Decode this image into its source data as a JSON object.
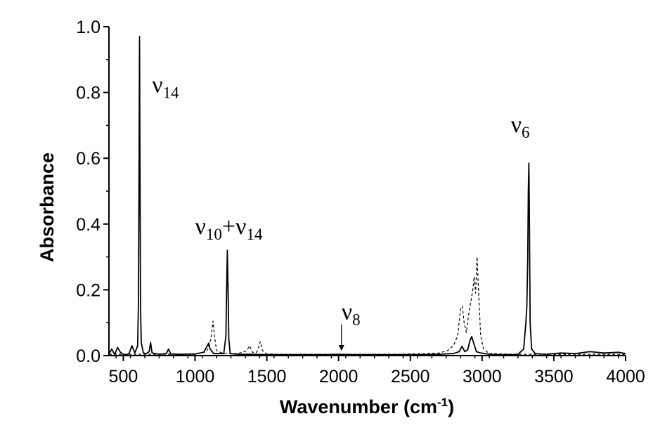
{
  "chart_data": {
    "type": "line",
    "xlabel": "Wavenumber (cm",
    "xlabel_sup": "-1",
    "xlabel_close": ")",
    "ylabel": "Absorbance",
    "xlim": [
      400,
      4000
    ],
    "ylim": [
      0,
      1.0
    ],
    "x_ticks": [
      500,
      1000,
      1500,
      2000,
      2500,
      3000,
      3500,
      4000
    ],
    "x_tick_labels": [
      "500",
      "1000",
      "1500",
      "2000",
      "2500",
      "3000",
      "3500",
      "4000"
    ],
    "y_ticks": [
      0.0,
      0.2,
      0.4,
      0.6,
      0.8,
      1.0
    ],
    "y_tick_labels": [
      "0.0",
      "0.2",
      "0.4",
      "0.6",
      "0.8",
      "1.0"
    ],
    "grid": false,
    "series": [
      {
        "style": "solid",
        "color": "#000000",
        "points": [
          [
            400,
            0.005
          ],
          [
            420,
            0.02
          ],
          [
            440,
            0.003
          ],
          [
            460,
            0.025
          ],
          [
            480,
            0.01
          ],
          [
            500,
            0.004
          ],
          [
            520,
            0.003
          ],
          [
            540,
            0.006
          ],
          [
            560,
            0.03
          ],
          [
            580,
            0.008
          ],
          [
            600,
            0.03
          ],
          [
            605,
            0.15
          ],
          [
            610,
            0.6
          ],
          [
            613,
            0.97
          ],
          [
            616,
            0.6
          ],
          [
            620,
            0.15
          ],
          [
            625,
            0.04
          ],
          [
            640,
            0.008
          ],
          [
            660,
            0.006
          ],
          [
            680,
            0.012
          ],
          [
            690,
            0.04
          ],
          [
            700,
            0.008
          ],
          [
            750,
            0.004
          ],
          [
            800,
            0.006
          ],
          [
            815,
            0.02
          ],
          [
            830,
            0.005
          ],
          [
            900,
            0.004
          ],
          [
            1000,
            0.005
          ],
          [
            1060,
            0.01
          ],
          [
            1085,
            0.03
          ],
          [
            1095,
            0.038
          ],
          [
            1105,
            0.02
          ],
          [
            1130,
            0.006
          ],
          [
            1200,
            0.006
          ],
          [
            1215,
            0.06
          ],
          [
            1220,
            0.2
          ],
          [
            1225,
            0.32
          ],
          [
            1230,
            0.2
          ],
          [
            1235,
            0.05
          ],
          [
            1245,
            0.006
          ],
          [
            1300,
            0.004
          ],
          [
            1400,
            0.004
          ],
          [
            1500,
            0.003
          ],
          [
            1600,
            0.003
          ],
          [
            1700,
            0.003
          ],
          [
            1800,
            0.003
          ],
          [
            1900,
            0.003
          ],
          [
            2000,
            0.004
          ],
          [
            2100,
            0.003
          ],
          [
            2200,
            0.003
          ],
          [
            2300,
            0.003
          ],
          [
            2400,
            0.003
          ],
          [
            2500,
            0.003
          ],
          [
            2600,
            0.003
          ],
          [
            2700,
            0.004
          ],
          [
            2800,
            0.006
          ],
          [
            2840,
            0.012
          ],
          [
            2860,
            0.028
          ],
          [
            2880,
            0.012
          ],
          [
            2900,
            0.018
          ],
          [
            2915,
            0.045
          ],
          [
            2928,
            0.058
          ],
          [
            2940,
            0.04
          ],
          [
            2960,
            0.012
          ],
          [
            2990,
            0.008
          ],
          [
            3050,
            0.004
          ],
          [
            3100,
            0.003
          ],
          [
            3200,
            0.003
          ],
          [
            3250,
            0.004
          ],
          [
            3290,
            0.02
          ],
          [
            3305,
            0.1
          ],
          [
            3312,
            0.15
          ],
          [
            3318,
            0.3
          ],
          [
            3322,
            0.5
          ],
          [
            3326,
            0.585
          ],
          [
            3330,
            0.4
          ],
          [
            3335,
            0.1
          ],
          [
            3345,
            0.02
          ],
          [
            3370,
            0.006
          ],
          [
            3450,
            0.004
          ],
          [
            3550,
            0.008
          ],
          [
            3650,
            0.006
          ],
          [
            3750,
            0.012
          ],
          [
            3850,
            0.008
          ],
          [
            3950,
            0.01
          ],
          [
            4000,
            0.006
          ]
        ]
      },
      {
        "style": "dashed",
        "color": "#000000",
        "points": [
          [
            400,
            0.004
          ],
          [
            600,
            0.004
          ],
          [
            900,
            0.004
          ],
          [
            1000,
            0.004
          ],
          [
            1080,
            0.012
          ],
          [
            1110,
            0.05
          ],
          [
            1125,
            0.105
          ],
          [
            1135,
            0.06
          ],
          [
            1150,
            0.015
          ],
          [
            1200,
            0.006
          ],
          [
            1300,
            0.006
          ],
          [
            1360,
            0.015
          ],
          [
            1380,
            0.03
          ],
          [
            1400,
            0.01
          ],
          [
            1430,
            0.01
          ],
          [
            1455,
            0.042
          ],
          [
            1470,
            0.015
          ],
          [
            1500,
            0.005
          ],
          [
            1600,
            0.004
          ],
          [
            1800,
            0.004
          ],
          [
            2000,
            0.004
          ],
          [
            2200,
            0.004
          ],
          [
            2400,
            0.004
          ],
          [
            2600,
            0.006
          ],
          [
            2700,
            0.008
          ],
          [
            2760,
            0.015
          ],
          [
            2800,
            0.03
          ],
          [
            2830,
            0.06
          ],
          [
            2850,
            0.14
          ],
          [
            2862,
            0.15
          ],
          [
            2875,
            0.1
          ],
          [
            2890,
            0.07
          ],
          [
            2905,
            0.12
          ],
          [
            2920,
            0.16
          ],
          [
            2935,
            0.2
          ],
          [
            2945,
            0.24
          ],
          [
            2955,
            0.19
          ],
          [
            2965,
            0.3
          ],
          [
            2975,
            0.2
          ],
          [
            2990,
            0.06
          ],
          [
            3010,
            0.02
          ],
          [
            3050,
            0.006
          ],
          [
            3200,
            0.004
          ],
          [
            3400,
            0.004
          ],
          [
            3600,
            0.004
          ],
          [
            4000,
            0.004
          ]
        ]
      }
    ],
    "annotations": [
      {
        "symbol": "ν",
        "sub": "14",
        "x": 700,
        "y": 0.8
      },
      {
        "symbol": "ν",
        "sub": "10",
        "mid": "+ν",
        "sub2": "14",
        "x": 1000,
        "y": 0.37
      },
      {
        "symbol": "ν",
        "sub": "8",
        "x": 2020,
        "y": 0.11,
        "arrow_to": [
          2020,
          0.015
        ],
        "arrow_from": [
          2020,
          0.095
        ]
      },
      {
        "symbol": "ν",
        "sub": "6",
        "x": 3200,
        "y": 0.68
      }
    ]
  }
}
